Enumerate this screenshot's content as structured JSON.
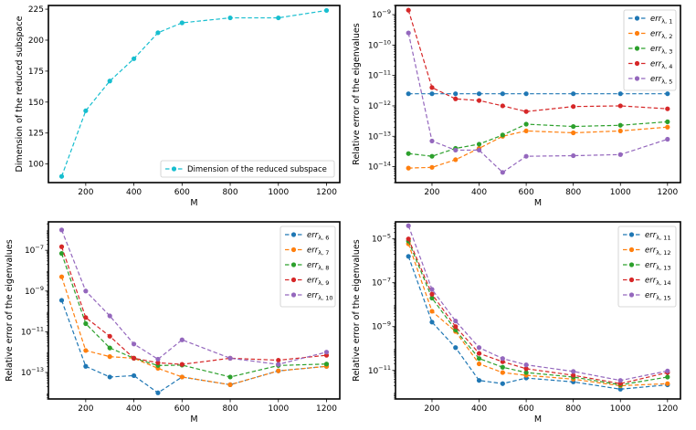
{
  "chart_data": [
    {
      "type": "line",
      "xlabel": "M",
      "ylabel": "Dimension of the reduced subspace",
      "yscale": "linear",
      "ylim": [
        85,
        228
      ],
      "xlim": [
        45,
        1255
      ],
      "xticks": [
        200,
        400,
        600,
        800,
        1000,
        1200
      ],
      "yticks": [
        100,
        125,
        150,
        175,
        200,
        225
      ],
      "legend_position": "lower-right",
      "series": [
        {
          "name": "Dimension of the reduced subspace",
          "color": "#17becf",
          "x": [
            100,
            200,
            300,
            400,
            500,
            600,
            800,
            1000,
            1200
          ],
          "y": [
            90,
            143,
            167,
            185,
            206,
            214,
            218,
            218,
            224
          ]
        }
      ]
    },
    {
      "type": "line",
      "xlabel": "M",
      "ylabel": "Relative error of the eigenvalues",
      "yscale": "log",
      "ylim": [
        3e-15,
        2e-09
      ],
      "xlim": [
        45,
        1255
      ],
      "xticks": [
        200,
        400,
        600,
        800,
        1000,
        1200
      ],
      "yticks": [
        "10^{-9}",
        "10^{-10}",
        "10^{-11}",
        "10^{-12}",
        "10^{-13}",
        "10^{-14}"
      ],
      "ytick_values": [
        1e-09,
        1e-10,
        1e-11,
        1e-12,
        1e-13,
        1e-14
      ],
      "legend_position": "top-right",
      "series": [
        {
          "name": "err",
          "sub": "λ, 1",
          "color": "#1f77b4",
          "x": [
            100,
            200,
            300,
            400,
            500,
            600,
            800,
            1000,
            1200
          ],
          "y": [
            2.5e-12,
            2.5e-12,
            2.5e-12,
            2.5e-12,
            2.5e-12,
            2.5e-12,
            2.5e-12,
            2.5e-12,
            2.5e-12
          ]
        },
        {
          "name": "err",
          "sub": "λ, 2",
          "color": "#ff7f0e",
          "x": [
            100,
            200,
            300,
            400,
            500,
            600,
            800,
            1000,
            1200
          ],
          "y": [
            9e-15,
            9.5e-15,
            1.7e-14,
            4e-14,
            1e-13,
            1.5e-13,
            1.3e-13,
            1.5e-13,
            2e-13
          ]
        },
        {
          "name": "err",
          "sub": "λ, 3",
          "color": "#2ca02c",
          "x": [
            100,
            200,
            300,
            400,
            500,
            600,
            800,
            1000,
            1200
          ],
          "y": [
            2.7e-14,
            2.2e-14,
            4e-14,
            5.5e-14,
            1.1e-13,
            2.5e-13,
            2.1e-13,
            2.3e-13,
            3e-13
          ]
        },
        {
          "name": "err",
          "sub": "λ, 4",
          "color": "#d62728",
          "x": [
            100,
            200,
            300,
            400,
            500,
            600,
            800,
            1000,
            1200
          ],
          "y": [
            1.4e-09,
            4e-12,
            1.7e-12,
            1.5e-12,
            1e-12,
            6.5e-13,
            9.5e-13,
            1e-12,
            8e-13
          ]
        },
        {
          "name": "err",
          "sub": "λ, 5",
          "color": "#9467bd",
          "x": [
            100,
            200,
            300,
            400,
            500,
            600,
            800,
            1000,
            1200
          ],
          "y": [
            2.5e-10,
            7e-14,
            3.5e-14,
            3.5e-14,
            6.5e-15,
            2.2e-14,
            2.3e-14,
            2.5e-14,
            8e-14
          ]
        }
      ]
    },
    {
      "type": "line",
      "xlabel": "M",
      "ylabel": "Relative error of the eigenvalues",
      "yscale": "log",
      "ylim": [
        5e-15,
        2.5e-06
      ],
      "xlim": [
        45,
        1255
      ],
      "xticks": [
        200,
        400,
        600,
        800,
        1000,
        1200
      ],
      "yticks": [
        "10^{-7}",
        "10^{-9}",
        "10^{-11}",
        "10^{-13}"
      ],
      "ytick_values": [
        1e-07,
        1e-09,
        1e-11,
        1e-13
      ],
      "legend_position": "top-right",
      "series": [
        {
          "name": "err",
          "sub": "λ, 6",
          "color": "#1f77b4",
          "x": [
            100,
            200,
            300,
            400,
            500,
            600,
            800,
            1000,
            1200
          ],
          "y": [
            3.5e-10,
            2e-13,
            6e-14,
            7e-14,
            1e-14,
            6e-14,
            2.5e-14,
            1.2e-13,
            2e-13
          ]
        },
        {
          "name": "err",
          "sub": "λ, 7",
          "color": "#ff7f0e",
          "x": [
            100,
            200,
            300,
            400,
            500,
            600,
            800,
            1000,
            1200
          ],
          "y": [
            5e-09,
            1.2e-12,
            6e-13,
            5e-13,
            1.6e-13,
            6e-14,
            2.5e-14,
            1.2e-13,
            2e-13
          ]
        },
        {
          "name": "err",
          "sub": "λ, 8",
          "color": "#2ca02c",
          "x": [
            100,
            200,
            300,
            400,
            500,
            600,
            800,
            1000,
            1200
          ],
          "y": [
            7e-08,
            2.5e-11,
            1.6e-12,
            5e-13,
            2.2e-13,
            2.3e-13,
            6e-14,
            2.2e-13,
            2.6e-13
          ]
        },
        {
          "name": "err",
          "sub": "λ, 9",
          "color": "#d62728",
          "x": [
            100,
            200,
            300,
            400,
            500,
            600,
            800,
            1000,
            1200
          ],
          "y": [
            1.5e-07,
            5e-11,
            6e-12,
            5e-13,
            3e-13,
            2.5e-13,
            5e-13,
            4e-13,
            7e-13
          ]
        },
        {
          "name": "err",
          "sub": "λ, 10",
          "color": "#9467bd",
          "x": [
            100,
            200,
            300,
            400,
            500,
            600,
            800,
            1000,
            1200
          ],
          "y": [
            1e-06,
            1e-09,
            6e-11,
            2.5e-12,
            4.5e-13,
            4e-12,
            5e-13,
            2.5e-13,
            1e-12
          ]
        }
      ]
    },
    {
      "type": "line",
      "xlabel": "M",
      "ylabel": "Relative error of the eigenvalues",
      "yscale": "log",
      "ylim": [
        5e-13,
        6e-05
      ],
      "xlim": [
        45,
        1255
      ],
      "xticks": [
        200,
        400,
        600,
        800,
        1000,
        1200
      ],
      "yticks": [
        "10^{-5}",
        "10^{-7}",
        "10^{-9}",
        "10^{-11}"
      ],
      "ytick_values": [
        1e-05,
        1e-07,
        1e-09,
        1e-11
      ],
      "legend_position": "top-right",
      "series": [
        {
          "name": "err",
          "sub": "λ, 11",
          "color": "#1f77b4",
          "x": [
            100,
            200,
            300,
            400,
            500,
            600,
            800,
            1000,
            1200
          ],
          "y": [
            1.6e-06,
            1.6e-09,
            1.1e-10,
            3.5e-12,
            2.5e-12,
            4.5e-12,
            3e-12,
            1.4e-12,
            2.2e-12
          ]
        },
        {
          "name": "err",
          "sub": "λ, 12",
          "color": "#ff7f0e",
          "x": [
            100,
            200,
            300,
            400,
            500,
            600,
            800,
            1000,
            1200
          ],
          "y": [
            6e-06,
            5e-09,
            6e-10,
            2e-11,
            8e-12,
            6e-12,
            4e-12,
            2e-12,
            2.5e-12
          ]
        },
        {
          "name": "err",
          "sub": "λ, 13",
          "color": "#2ca02c",
          "x": [
            100,
            200,
            300,
            400,
            500,
            600,
            800,
            1000,
            1200
          ],
          "y": [
            8e-06,
            2e-08,
            7e-10,
            3.5e-11,
            1.4e-11,
            8e-12,
            5e-12,
            2.2e-12,
            5e-12
          ]
        },
        {
          "name": "err",
          "sub": "λ, 14",
          "color": "#d62728",
          "x": [
            100,
            200,
            300,
            400,
            500,
            600,
            800,
            1000,
            1200
          ],
          "y": [
            1e-05,
            3e-08,
            1e-09,
            6e-11,
            2.5e-11,
            1.2e-11,
            6e-12,
            2.5e-12,
            8e-12
          ]
        },
        {
          "name": "err",
          "sub": "λ, 15",
          "color": "#9467bd",
          "x": [
            100,
            200,
            300,
            400,
            500,
            600,
            800,
            1000,
            1200
          ],
          "y": [
            4e-05,
            5e-08,
            1.8e-09,
            1.1e-10,
            3.5e-11,
            1.8e-11,
            9e-12,
            3.5e-12,
            9.5e-12
          ]
        }
      ]
    }
  ]
}
